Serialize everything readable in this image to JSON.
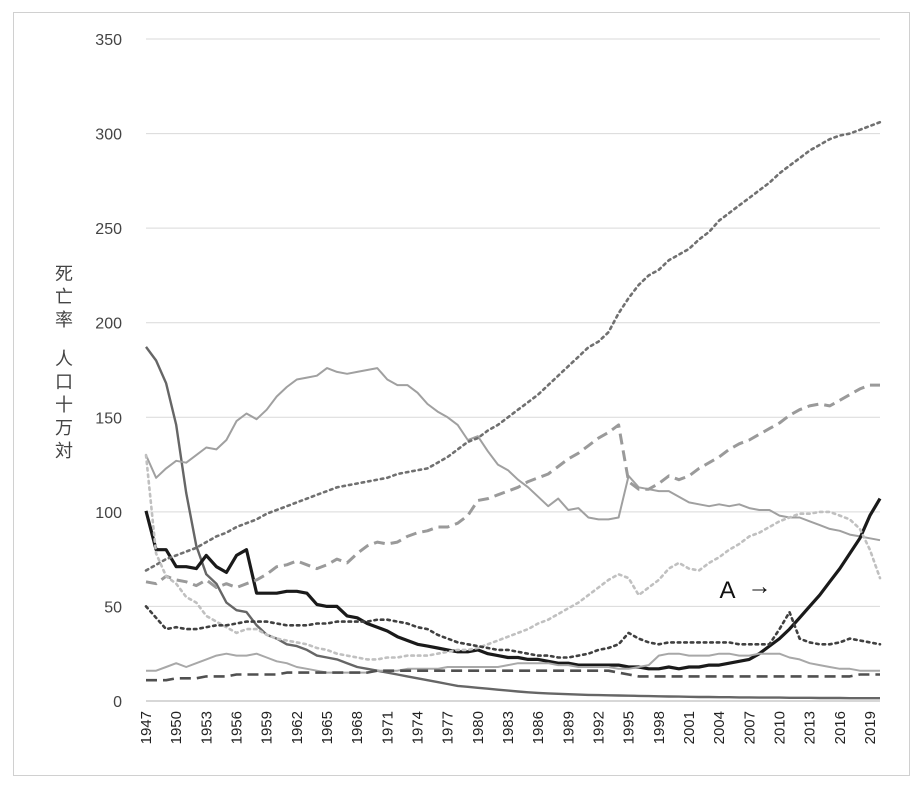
{
  "chart_data": {
    "type": "line",
    "ylabel": "死亡率　人口十万対",
    "ylim": [
      0,
      350
    ],
    "yticks": [
      "0",
      "50",
      "100",
      "150",
      "200",
      "250",
      "300",
      "350"
    ],
    "xticks": [
      "1947",
      "1950",
      "1953",
      "1956",
      "1959",
      "1962",
      "1965",
      "1968",
      "1971",
      "1974",
      "1977",
      "1980",
      "1983",
      "1986",
      "1989",
      "1992",
      "1995",
      "1998",
      "2001",
      "2004",
      "2007",
      "2010",
      "2013",
      "2016",
      "2019"
    ],
    "x": [
      1947,
      1948,
      1949,
      1950,
      1951,
      1952,
      1953,
      1954,
      1955,
      1956,
      1957,
      1958,
      1959,
      1960,
      1961,
      1962,
      1963,
      1964,
      1965,
      1966,
      1967,
      1968,
      1969,
      1970,
      1971,
      1972,
      1973,
      1974,
      1975,
      1976,
      1977,
      1978,
      1979,
      1980,
      1981,
      1982,
      1983,
      1984,
      1985,
      1986,
      1987,
      1988,
      1989,
      1990,
      1991,
      1992,
      1993,
      1994,
      1995,
      1996,
      1997,
      1998,
      1999,
      2000,
      2001,
      2002,
      2003,
      2004,
      2005,
      2006,
      2007,
      2008,
      2009,
      2010,
      2011,
      2012,
      2013,
      2014,
      2015,
      2016,
      2017,
      2018,
      2019,
      2020
    ],
    "grid": "horizontal",
    "legend": "none",
    "annotation": {
      "text": "A",
      "arrow": "→",
      "x": 2011,
      "y": 65
    },
    "series": [
      {
        "style": "solid",
        "color": "#666666",
        "width": 2.4,
        "values": [
          187.2,
          180,
          168,
          146,
          110,
          82,
          67,
          62,
          52,
          48,
          47,
          40,
          35,
          33,
          30,
          29,
          27,
          24,
          23,
          22,
          20,
          18,
          17,
          16,
          15,
          14,
          13,
          12,
          11,
          10,
          9,
          8,
          7.5,
          7,
          6.5,
          6,
          5.5,
          5,
          4.6,
          4.3,
          4,
          3.8,
          3.6,
          3.4,
          3.2,
          3.1,
          3,
          2.9,
          2.8,
          2.7,
          2.6,
          2.5,
          2.4,
          2.3,
          2.2,
          2.1,
          2.1,
          2,
          2,
          1.9,
          1.9,
          1.8,
          1.8,
          1.8,
          1.7,
          1.7,
          1.7,
          1.6,
          1.6,
          1.6,
          1.5,
          1.5,
          1.5,
          1.5
        ]
      },
      {
        "style": "solid",
        "color": "#a0a0a0",
        "width": 2,
        "values": [
          130,
          118,
          123,
          127,
          126,
          130,
          134,
          133,
          138,
          148,
          152,
          149,
          154,
          161,
          166,
          170,
          171,
          172,
          176,
          174,
          173,
          174,
          175,
          176,
          170,
          167,
          167,
          163,
          157,
          153,
          150,
          146,
          138,
          140,
          132,
          125,
          122,
          117,
          113,
          108,
          103,
          107,
          101,
          102,
          97,
          96,
          96,
          97,
          119,
          113,
          112,
          111,
          111,
          108,
          105,
          104,
          103,
          104,
          103,
          104,
          102,
          101,
          101,
          98,
          97,
          97,
          95,
          93,
          91,
          90,
          88,
          87,
          86,
          85
        ]
      },
      {
        "style": "solid",
        "color": "#1a1a1a",
        "width": 3.2,
        "values": [
          100.5,
          80,
          80,
          71,
          71,
          70,
          77,
          71,
          68,
          77,
          80,
          57,
          57,
          57,
          58,
          58,
          57,
          51,
          50,
          50,
          45,
          44,
          41,
          39,
          37,
          34,
          32,
          30,
          29,
          28,
          27,
          26,
          26,
          27,
          25,
          24,
          23,
          23,
          22,
          22,
          21,
          20,
          20,
          19,
          19,
          19,
          19,
          19,
          18,
          18,
          17,
          17,
          18,
          17,
          18,
          18,
          19,
          19,
          20,
          21,
          22,
          25,
          29,
          33,
          38,
          44,
          50,
          56,
          63,
          70,
          78,
          86,
          98,
          107
        ]
      },
      {
        "style": "dotted",
        "color": "#707070",
        "width": 2.6,
        "values": [
          69,
          72,
          75,
          77,
          79,
          81,
          84,
          87,
          89,
          92,
          94,
          96,
          99,
          101,
          103,
          105,
          107,
          109,
          111,
          113,
          114,
          115,
          116,
          117,
          118,
          120,
          121,
          122,
          123,
          126,
          129,
          133,
          137,
          139,
          143,
          146,
          150,
          154,
          158,
          162,
          167,
          172,
          177,
          182,
          187,
          190,
          195,
          205,
          213,
          220,
          225,
          228,
          233,
          236,
          239,
          244,
          248,
          254,
          258,
          262,
          266,
          270,
          274,
          279,
          283,
          287,
          291,
          294,
          297,
          299,
          300,
          302,
          304,
          306
        ]
      },
      {
        "style": "dashed",
        "color": "#9a9a9a",
        "width": 3,
        "values": [
          63,
          62,
          66,
          64,
          63,
          61,
          64,
          60,
          62,
          60,
          62,
          64,
          67,
          71,
          72,
          74,
          72,
          70,
          72,
          75,
          73,
          78,
          82,
          84,
          83,
          84,
          87,
          89,
          90,
          92,
          92,
          94,
          98,
          106,
          107,
          109,
          111,
          113,
          116,
          118,
          120,
          124,
          128,
          131,
          135,
          139,
          142,
          146,
          116,
          112,
          112,
          115,
          119,
          117,
          119,
          123,
          126,
          129,
          133,
          136,
          138,
          141,
          144,
          147,
          151,
          154,
          156,
          157,
          156,
          159,
          162,
          165,
          167,
          167
        ]
      },
      {
        "style": "dotted",
        "color": "#c0c0c0",
        "width": 2.6,
        "values": [
          130,
          78,
          66,
          62,
          55,
          52,
          45,
          42,
          39,
          36,
          38,
          38,
          35,
          33,
          32,
          31,
          30,
          28,
          27,
          25,
          24,
          23,
          22,
          22,
          23,
          23,
          24,
          24,
          24,
          25,
          26,
          27,
          27,
          28,
          30,
          32,
          34,
          36,
          38,
          41,
          43,
          46,
          49,
          52,
          56,
          60,
          64,
          67,
          65,
          56,
          60,
          64,
          70,
          73,
          70,
          69,
          73,
          76,
          80,
          83,
          87,
          89,
          92,
          95,
          97,
          99,
          99,
          100,
          100,
          98,
          96,
          91,
          80,
          65
        ]
      },
      {
        "style": "dotted",
        "color": "#404040",
        "width": 2.6,
        "values": [
          50,
          44,
          38,
          39,
          38,
          38,
          39,
          40,
          40,
          41,
          42,
          42,
          42,
          41,
          40,
          40,
          40,
          41,
          41,
          42,
          42,
          42,
          42,
          43,
          43,
          42,
          41,
          39,
          38,
          35,
          33,
          31,
          30,
          29,
          28,
          27,
          27,
          26,
          25,
          24,
          24,
          23,
          23,
          24,
          25,
          27,
          28,
          30,
          36,
          33,
          31,
          30,
          31,
          31,
          31,
          31,
          31,
          31,
          31,
          30,
          30,
          30,
          30,
          38,
          47,
          33,
          31,
          30,
          30,
          31,
          33,
          32,
          31,
          30
        ]
      },
      {
        "style": "solid",
        "color": "#a8a8a8",
        "width": 2,
        "values": [
          16,
          16,
          18,
          20,
          18,
          20,
          22,
          24,
          25,
          24,
          24,
          25,
          23,
          21,
          20,
          18,
          17,
          16,
          15,
          15,
          15,
          15,
          15,
          16,
          16,
          16,
          17,
          17,
          17,
          17,
          18,
          18,
          18,
          18,
          18,
          18,
          19,
          20,
          20,
          20,
          20,
          19,
          19,
          18,
          18,
          18,
          18,
          17,
          17,
          18,
          19,
          24,
          25,
          25,
          24,
          24,
          24,
          25,
          25,
          24,
          24,
          25,
          25,
          25,
          23,
          22,
          20,
          19,
          18,
          17,
          17,
          16,
          16,
          16
        ]
      },
      {
        "style": "dashed",
        "color": "#505050",
        "width": 2.6,
        "values": [
          11,
          11,
          11,
          12,
          12,
          12,
          13,
          13,
          13,
          14,
          14,
          14,
          14,
          14,
          15,
          15,
          15,
          15,
          15,
          15,
          15,
          15,
          15,
          16,
          16,
          16,
          16,
          16,
          16,
          16,
          16,
          16,
          16,
          16,
          16,
          16,
          16,
          16,
          16,
          16,
          16,
          16,
          16,
          16,
          16,
          16,
          16,
          15,
          14,
          13,
          13,
          13,
          13,
          13,
          13,
          13,
          13,
          13,
          13,
          13,
          13,
          13,
          13,
          13,
          13,
          13,
          13,
          13,
          13,
          13,
          13,
          14,
          14,
          14
        ]
      }
    ]
  }
}
